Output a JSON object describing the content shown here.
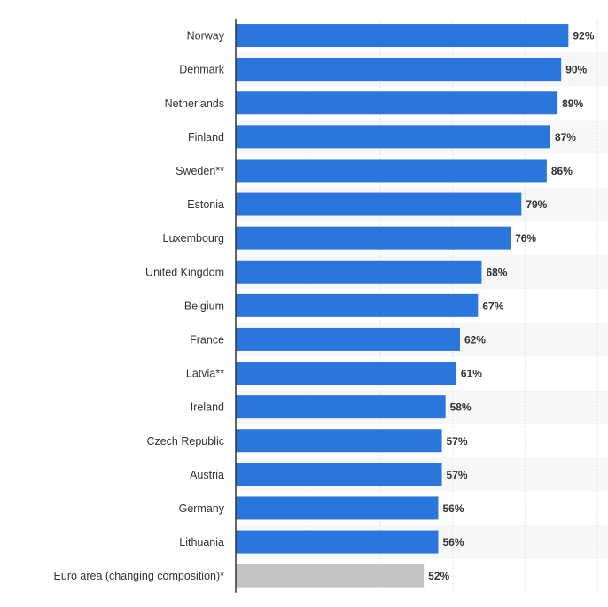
{
  "chart_data": {
    "type": "bar",
    "orientation": "horizontal",
    "title": "",
    "xlabel": "",
    "ylabel": "",
    "value_suffix": "%",
    "xlim": [
      0,
      100
    ],
    "grid": true,
    "categories": [
      "Norway",
      "Denmark",
      "Netherlands",
      "Finland",
      "Sweden**",
      "Estonia",
      "Luxembourg",
      "United Kingdom",
      "Belgium",
      "France",
      "Latvia**",
      "Ireland",
      "Czech Republic",
      "Austria",
      "Germany",
      "Lithuania",
      "Euro area (changing composition)*"
    ],
    "values": [
      92,
      90,
      89,
      87,
      86,
      79,
      76,
      68,
      67,
      62,
      61,
      58,
      57,
      57,
      56,
      56,
      52
    ],
    "value_labels": [
      "92%",
      "90%",
      "89%",
      "87%",
      "86%",
      "79%",
      "76%",
      "68%",
      "67%",
      "62%",
      "61%",
      "58%",
      "57%",
      "57%",
      "56%",
      "56%",
      "52%"
    ],
    "highlight_category": "Euro area (changing composition)*",
    "colors": {
      "bar": "#2a76dd",
      "highlight_bar": "#c4c4c4",
      "grid": "#e3e3e3",
      "axis": "#333333",
      "band": "#f7f7f7"
    }
  }
}
